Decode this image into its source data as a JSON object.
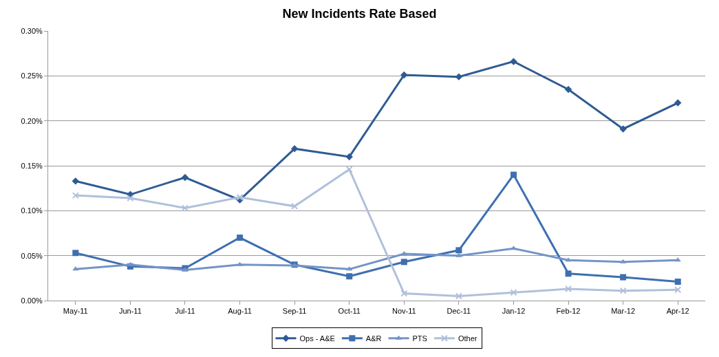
{
  "chart_data": {
    "type": "line",
    "title": "New Incidents Rate Based",
    "categories": [
      "May-11",
      "Jun-11",
      "Jul-11",
      "Aug-11",
      "Sep-11",
      "Oct-11",
      "Nov-11",
      "Dec-11",
      "Jan-12",
      "Feb-12",
      "Mar-12",
      "Apr-12"
    ],
    "series": [
      {
        "name": "Ops - A&E",
        "color": "#2f5b93",
        "marker": "diamond",
        "values": [
          0.133,
          0.118,
          0.137,
          0.112,
          0.169,
          0.16,
          0.251,
          0.249,
          0.266,
          0.235,
          0.191,
          0.22
        ]
      },
      {
        "name": "A&R",
        "color": "#3e6fb0",
        "marker": "square",
        "values": [
          0.053,
          0.038,
          0.036,
          0.07,
          0.04,
          0.027,
          0.043,
          0.056,
          0.14,
          0.03,
          0.026,
          0.021
        ]
      },
      {
        "name": "PTS",
        "color": "#7394c7",
        "marker": "triangle",
        "values": [
          0.035,
          0.04,
          0.034,
          0.04,
          0.039,
          0.035,
          0.052,
          0.05,
          0.058,
          0.045,
          0.043,
          0.045
        ]
      },
      {
        "name": "Other",
        "color": "#b0c0db",
        "marker": "cross",
        "values": [
          0.117,
          0.114,
          0.103,
          0.115,
          0.105,
          0.146,
          0.008,
          0.005,
          0.009,
          0.013,
          0.011,
          0.012
        ]
      }
    ],
    "ylim": [
      0,
      0.3
    ],
    "yticks": [
      {
        "value": 0,
        "label": "0.00%"
      },
      {
        "value": 0.05,
        "label": "0.05%"
      },
      {
        "value": 0.1,
        "label": "0.10%"
      },
      {
        "value": 0.15,
        "label": "0.15%"
      },
      {
        "value": 0.2,
        "label": "0.20%"
      },
      {
        "value": 0.25,
        "label": "0.25%"
      },
      {
        "value": 0.3,
        "label": "0.30%"
      }
    ],
    "grid": "y",
    "legend": "bottom",
    "line_style": "solid"
  }
}
